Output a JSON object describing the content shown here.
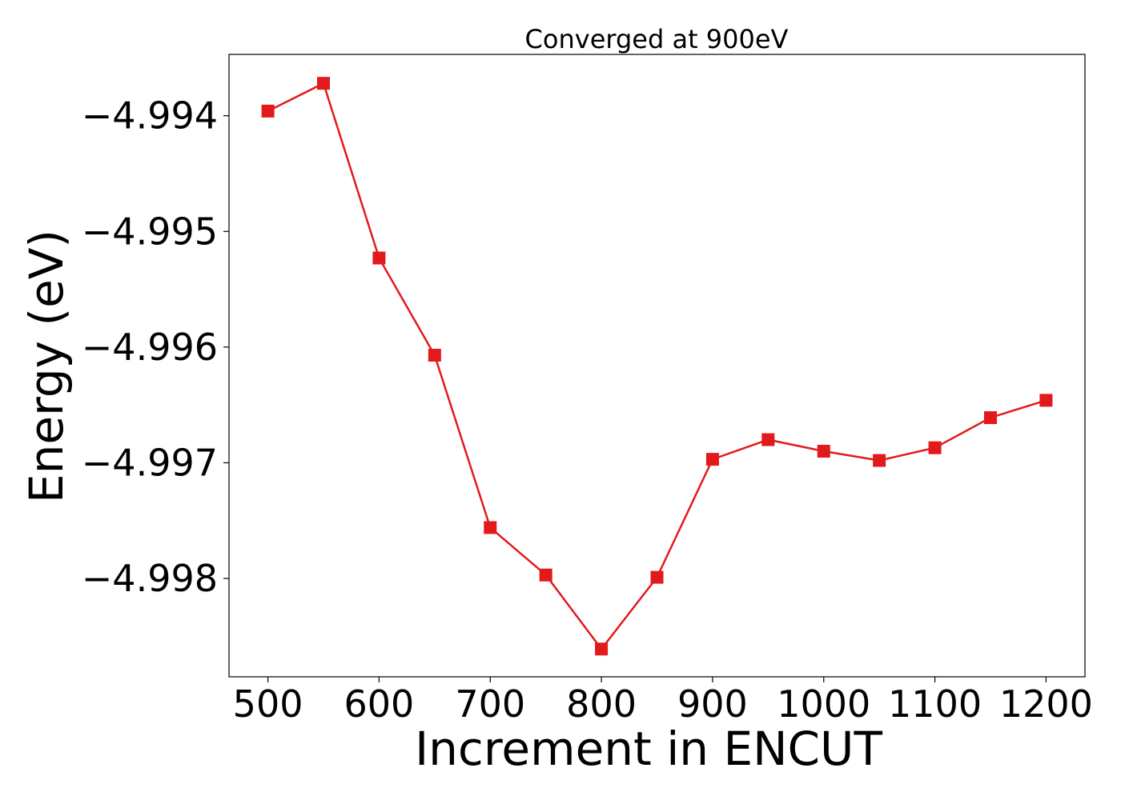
{
  "chart_data": {
    "type": "line",
    "title": "Converged at 900eV",
    "xlabel": "Increment in ENCUT",
    "ylabel": "Energy (eV)",
    "x": [
      500,
      550,
      600,
      650,
      700,
      750,
      800,
      850,
      900,
      950,
      1000,
      1050,
      1100,
      1150,
      1200
    ],
    "series": [
      {
        "values": [
          -4.99396,
          -4.99372,
          -4.99523,
          -4.99607,
          -4.99756,
          -4.99797,
          -4.99861,
          -4.99799,
          -4.99697,
          -4.9968,
          -4.9969,
          -4.99698,
          -4.99687,
          -4.99661,
          -4.99646
        ],
        "color": "#e31a1c",
        "marker": "square"
      }
    ],
    "xticks": [
      500,
      600,
      700,
      800,
      900,
      1000,
      1100,
      1200
    ],
    "yticks": [
      -4.998,
      -4.997,
      -4.996,
      -4.995,
      -4.994
    ],
    "xtick_labels": [
      "500",
      "600",
      "700",
      "800",
      "900",
      "1000",
      "1100",
      "1200"
    ],
    "ytick_labels": [
      "−4.998",
      "−4.997",
      "−4.996",
      "−4.995",
      "−4.994"
    ],
    "xlim": [
      465,
      1235
    ],
    "ylim": [
      -4.99885,
      -4.99347
    ],
    "grid": false,
    "legend": false
  }
}
